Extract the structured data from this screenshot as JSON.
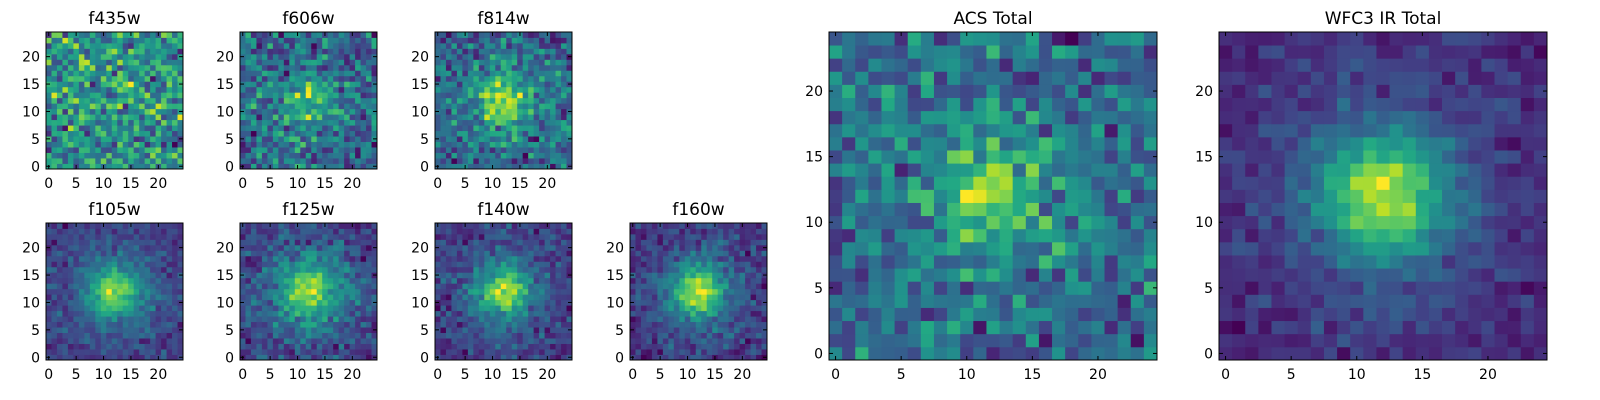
{
  "chart_data": [
    {
      "type": "heatmap",
      "title": "f435w",
      "shape": [
        25,
        25
      ],
      "xticks": [
        0,
        5,
        10,
        15,
        20
      ],
      "yticks": [
        0,
        5,
        10,
        15,
        20
      ],
      "colormap": "viridis",
      "source_core": 0.05,
      "source_wide": 0.0,
      "noise": 0.34,
      "seed": 11
    },
    {
      "type": "heatmap",
      "title": "f606w",
      "shape": [
        25,
        25
      ],
      "xticks": [
        0,
        5,
        10,
        15,
        20
      ],
      "yticks": [
        0,
        5,
        10,
        15,
        20
      ],
      "colormap": "viridis",
      "source_core": 0.18,
      "source_wide": 0.05,
      "noise": 0.3,
      "seed": 23
    },
    {
      "type": "heatmap",
      "title": "f814w",
      "shape": [
        25,
        25
      ],
      "xticks": [
        0,
        5,
        10,
        15,
        20
      ],
      "yticks": [
        0,
        5,
        10,
        15,
        20
      ],
      "colormap": "viridis",
      "source_core": 0.3,
      "source_wide": 0.08,
      "noise": 0.27,
      "seed": 37
    },
    {
      "type": "heatmap",
      "title": "f105w",
      "shape": [
        25,
        25
      ],
      "xticks": [
        0,
        5,
        10,
        15,
        20
      ],
      "yticks": [
        0,
        5,
        10,
        15,
        20
      ],
      "colormap": "viridis",
      "source_core": 0.45,
      "source_wide": 0.15,
      "noise": 0.18,
      "seed": 41
    },
    {
      "type": "heatmap",
      "title": "f125w",
      "shape": [
        25,
        25
      ],
      "xticks": [
        0,
        5,
        10,
        15,
        20
      ],
      "yticks": [
        0,
        5,
        10,
        15,
        20
      ],
      "colormap": "viridis",
      "source_core": 0.32,
      "source_wide": 0.22,
      "noise": 0.2,
      "seed": 53
    },
    {
      "type": "heatmap",
      "title": "f140w",
      "shape": [
        25,
        25
      ],
      "xticks": [
        0,
        5,
        10,
        15,
        20
      ],
      "yticks": [
        0,
        5,
        10,
        15,
        20
      ],
      "colormap": "viridis",
      "source_core": 0.42,
      "source_wide": 0.15,
      "noise": 0.19,
      "seed": 67
    },
    {
      "type": "heatmap",
      "title": "f160w",
      "shape": [
        25,
        25
      ],
      "xticks": [
        0,
        5,
        10,
        15,
        20
      ],
      "yticks": [
        0,
        5,
        10,
        15,
        20
      ],
      "colormap": "viridis",
      "source_core": 0.45,
      "source_wide": 0.15,
      "noise": 0.18,
      "seed": 79
    },
    {
      "type": "heatmap",
      "title": "ACS Total",
      "shape": [
        25,
        25
      ],
      "xticks": [
        0,
        5,
        10,
        15,
        20
      ],
      "yticks": [
        0,
        5,
        10,
        15,
        20
      ],
      "colormap": "viridis",
      "source_core": 0.22,
      "source_wide": 0.06,
      "noise": 0.26,
      "seed": 89
    },
    {
      "type": "heatmap",
      "title": "WFC3 IR Total",
      "shape": [
        25,
        25
      ],
      "xticks": [
        0,
        5,
        10,
        15,
        20
      ],
      "yticks": [
        0,
        5,
        10,
        15,
        20
      ],
      "colormap": "viridis",
      "source_core": 0.5,
      "source_wide": 0.18,
      "noise": 0.13,
      "seed": 97
    }
  ]
}
